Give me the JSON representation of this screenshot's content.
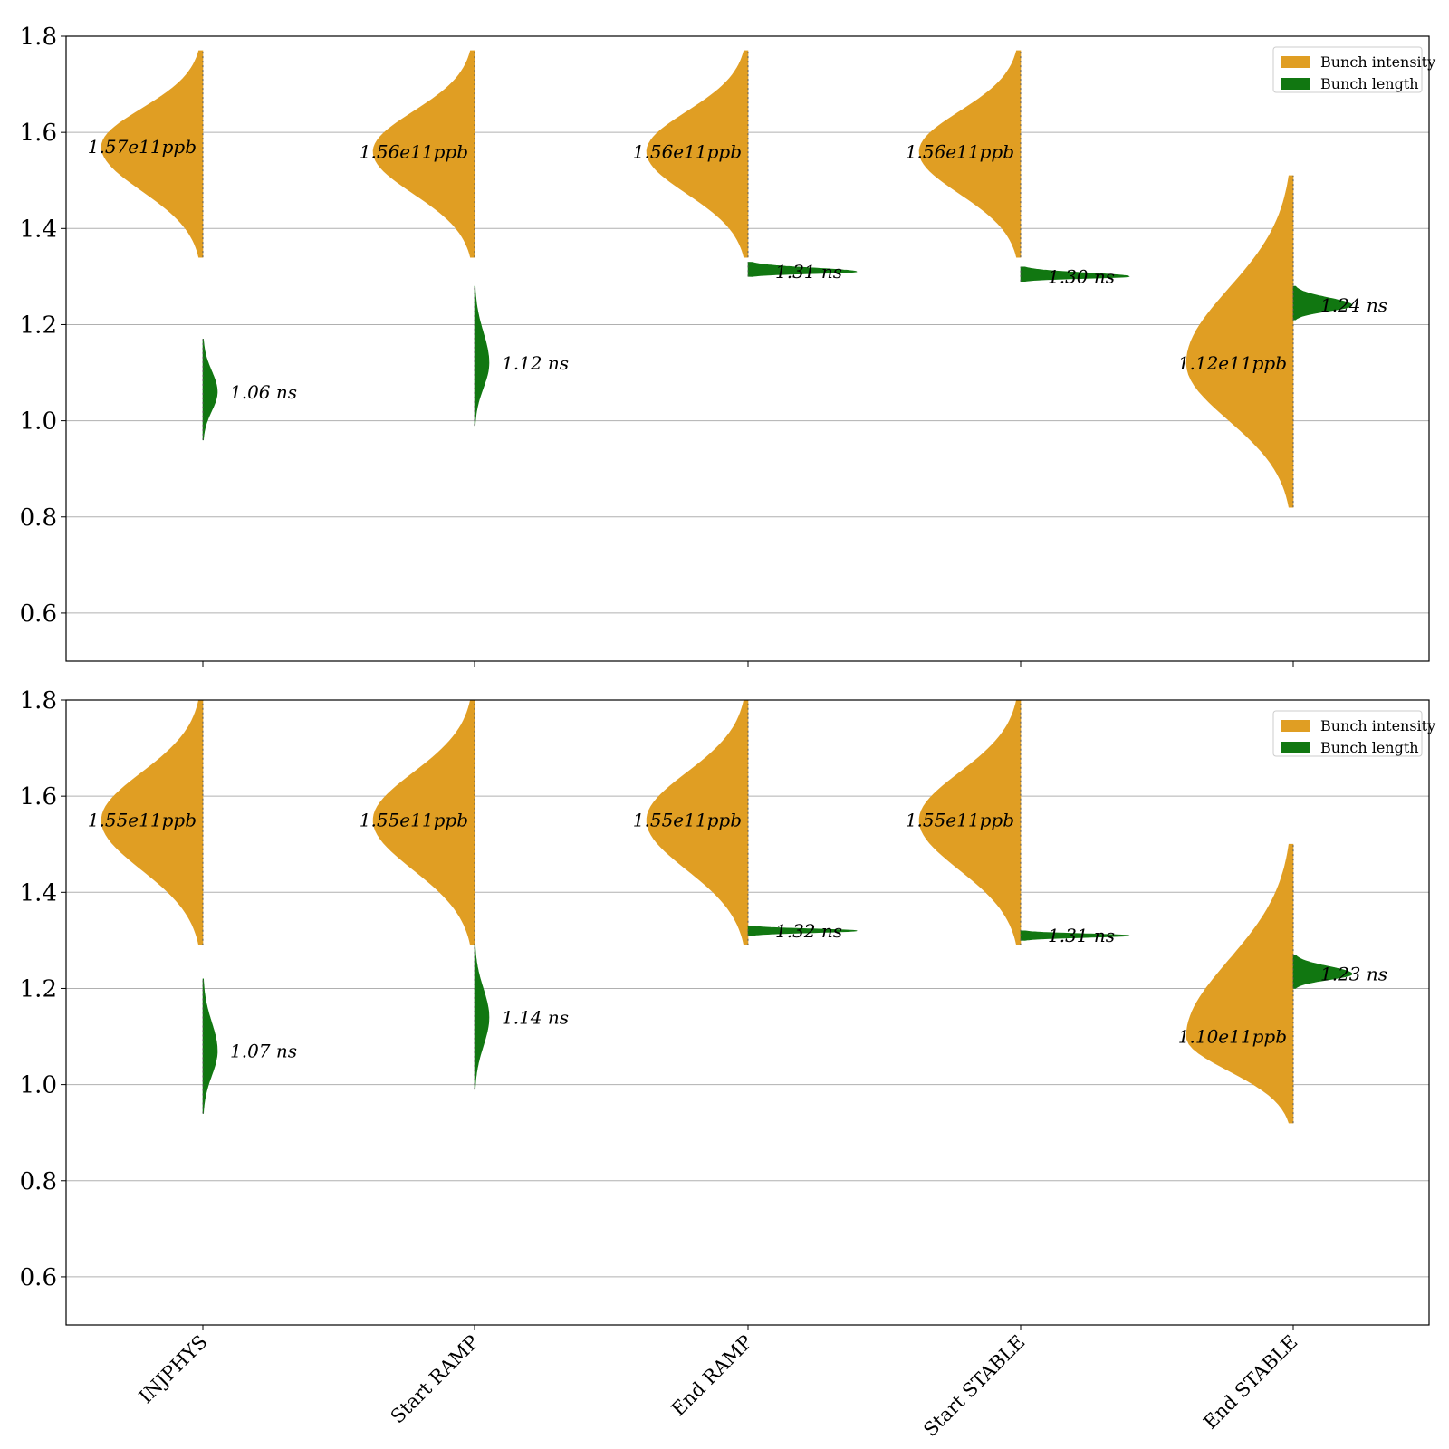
{
  "chart_data": [
    {
      "type": "violin",
      "ylim": [
        0.5,
        1.8
      ],
      "yticks": [
        "0.6",
        "0.8",
        "1.0",
        "1.2",
        "1.4",
        "1.6",
        "1.8"
      ],
      "grid": "horizontal",
      "legend_position": "top-right",
      "categories": [
        "INJPHYS",
        "Start RAMP",
        "End RAMP",
        "Start STABLE",
        "End STABLE"
      ],
      "series": [
        {
          "name": "Bunch intensity",
          "side": "left",
          "color": "#E09E23",
          "medians": [
            1.57,
            1.56,
            1.56,
            1.56,
            1.12
          ],
          "ranges": [
            [
              1.34,
              1.77
            ],
            [
              1.34,
              1.77
            ],
            [
              1.34,
              1.77
            ],
            [
              1.34,
              1.77
            ],
            [
              0.82,
              1.51
            ]
          ],
          "labels": [
            "1.57e11ppb",
            "1.56e11ppb",
            "1.56e11ppb",
            "1.56e11ppb",
            "1.12e11ppb"
          ]
        },
        {
          "name": "Bunch length",
          "side": "right",
          "color": "#117711",
          "medians": [
            1.06,
            1.12,
            1.31,
            1.3,
            1.24
          ],
          "ranges": [
            [
              0.96,
              1.17
            ],
            [
              0.99,
              1.28
            ],
            [
              1.3,
              1.33
            ],
            [
              1.29,
              1.32
            ],
            [
              1.21,
              1.28
            ]
          ],
          "labels": [
            "1.06 ns",
            "1.12 ns",
            "1.31 ns",
            "1.30 ns",
            "1.24 ns"
          ]
        }
      ]
    },
    {
      "type": "violin",
      "ylim": [
        0.5,
        1.8
      ],
      "yticks": [
        "0.6",
        "0.8",
        "1.0",
        "1.2",
        "1.4",
        "1.6",
        "1.8"
      ],
      "grid": "horizontal",
      "legend_position": "top-right",
      "categories": [
        "INJPHYS",
        "Start RAMP",
        "End RAMP",
        "Start STABLE",
        "End STABLE"
      ],
      "series": [
        {
          "name": "Bunch intensity",
          "side": "left",
          "color": "#E09E23",
          "medians": [
            1.55,
            1.55,
            1.55,
            1.55,
            1.1
          ],
          "ranges": [
            [
              1.29,
              1.8
            ],
            [
              1.29,
              1.8
            ],
            [
              1.29,
              1.8
            ],
            [
              1.29,
              1.8
            ],
            [
              0.92,
              1.5
            ]
          ],
          "labels": [
            "1.55e11ppb",
            "1.55e11ppb",
            "1.55e11ppb",
            "1.55e11ppb",
            "1.10e11ppb"
          ]
        },
        {
          "name": "Bunch length",
          "side": "right",
          "color": "#117711",
          "medians": [
            1.07,
            1.14,
            1.32,
            1.31,
            1.23
          ],
          "ranges": [
            [
              0.94,
              1.22
            ],
            [
              0.99,
              1.29
            ],
            [
              1.31,
              1.33
            ],
            [
              1.3,
              1.32
            ],
            [
              1.2,
              1.27
            ]
          ],
          "labels": [
            "1.07 ns",
            "1.14 ns",
            "1.32 ns",
            "1.31 ns",
            "1.23 ns"
          ]
        }
      ]
    }
  ]
}
